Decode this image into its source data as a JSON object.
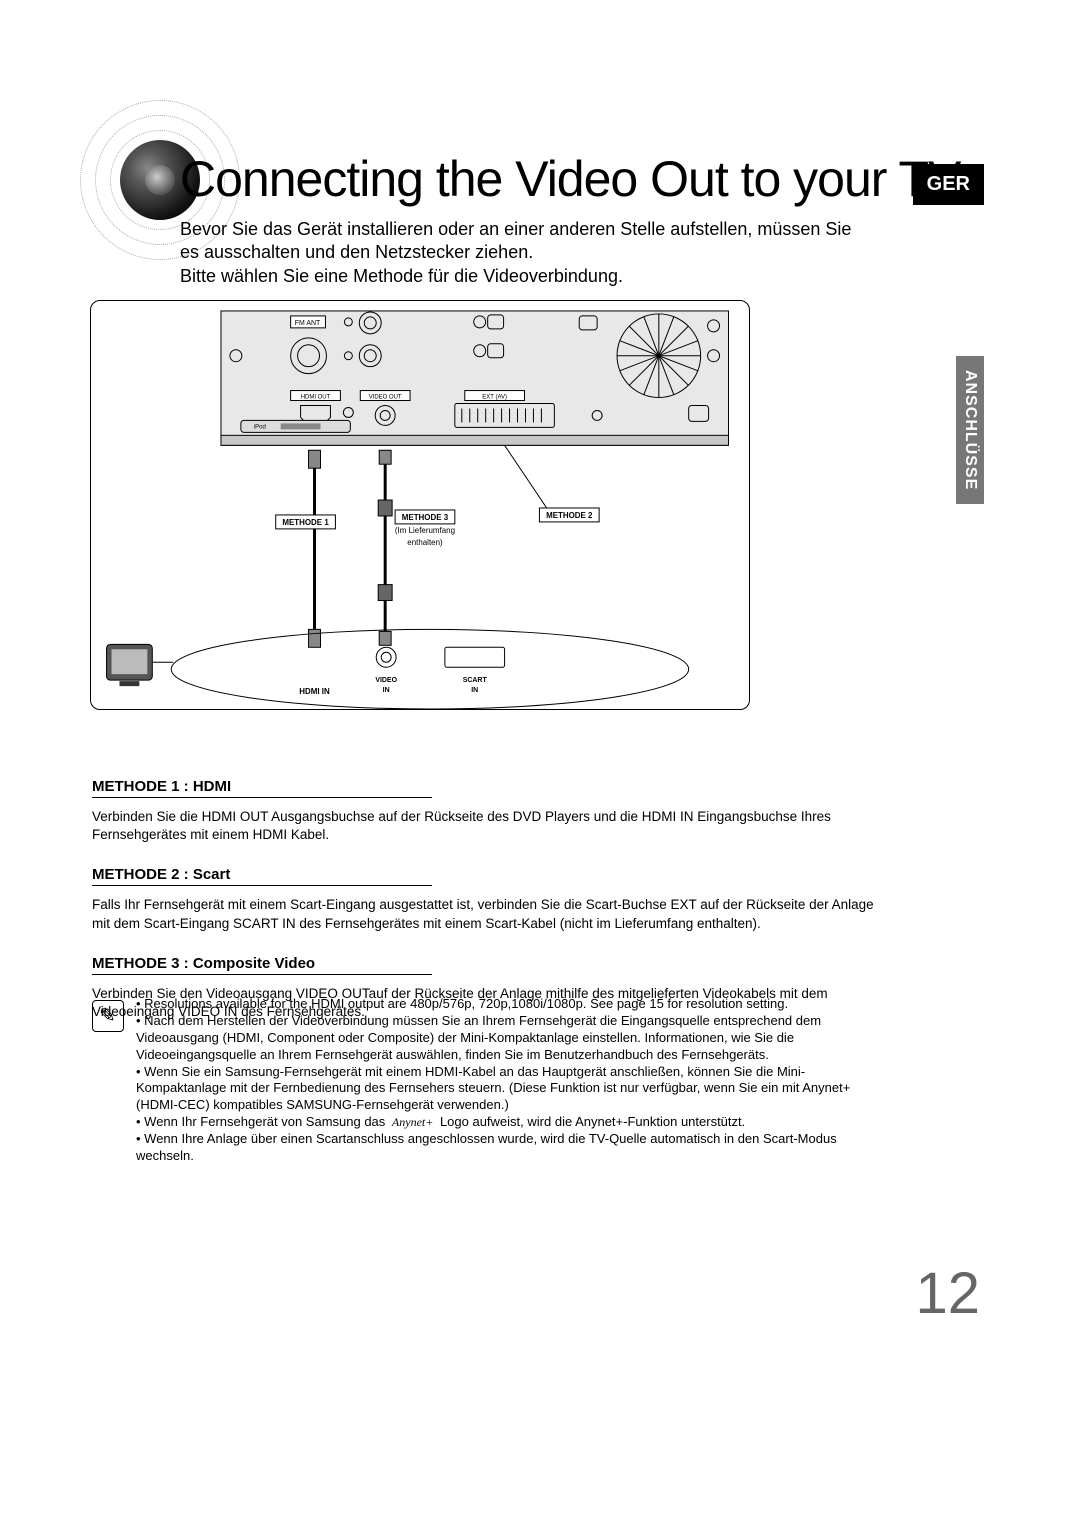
{
  "header": {
    "title": "Connecting the Video Out to your TV",
    "intro": "Bevor Sie das Gerät installieren oder an einer anderen Stelle aufstellen, müssen Sie es ausschalten und den Netzstecker ziehen.\nBitte wählen Sie eine Methode für die Videoverbindung.",
    "lang_badge": "GER",
    "side_tab": "ANSCHLÜSSE"
  },
  "diagram": {
    "ports": {
      "fmant": "FM ANT",
      "hdmi_out": "HDMI OUT",
      "video_out": "VIDEO OUT",
      "ext_av": "EXT (AV)",
      "ipod": "iPod"
    },
    "tags": {
      "methode1": "METHODE 1",
      "methode2": "METHODE 2",
      "methode3_a": "METHODE 3",
      "methode3_b": "(Im Lieferumfang",
      "methode3_c": "enthalten)"
    },
    "tv_ports": {
      "hdmi_in": "HDMI IN",
      "video_in": "VIDEO\nIN",
      "scart_in": "SCART\nIN"
    }
  },
  "methods": {
    "m1_head": "METHODE 1 : HDMI",
    "m1_text": "Verbinden Sie die HDMI OUT Ausgangsbuchse auf der Rückseite des DVD Players und die HDMI IN Eingangsbuchse Ihres Fernsehgerätes mit einem HDMI Kabel.",
    "m2_head": "METHODE 2 : Scart",
    "m2_text": "Falls Ihr Fernsehgerät mit einem Scart-Eingang ausgestattet ist, verbinden Sie die Scart-Buchse EXT auf der Rückseite der Anlage mit dem Scart-Eingang SCART IN des Fernsehgerätes mit einem Scart-Kabel (nicht im Lieferumfang enthalten).",
    "m3_head": "METHODE 3 : Composite Video",
    "m3_text": "Verbinden Sie den Videoausgang VIDEO OUTauf der Rückseite der Anlage mithilfe des mitgelieferten Videokabels mit dem Videoeingang VIDEO IN des Fernsehgerätes."
  },
  "notes": {
    "items": [
      "Resolutions available for the HDMI output are 480p/576p, 720p,1080i/1080p. See page 15 for resolution setting.",
      "Nach dem Herstellen der Videoverbindung müssen Sie an Ihrem Fernsehgerät die Eingangsquelle entsprechend dem Videoausgang (HDMI, Component oder Composite) der Mini-Kompaktanlage einstellen. Informationen, wie Sie die Videoeingangsquelle an Ihrem Fernsehgerät auswählen, finden Sie im Benutzerhandbuch des Fernsehgeräts.",
      "Wenn Sie ein Samsung-Fernsehgerät mit einem HDMI-Kabel an das Hauptgerät anschließen, können Sie die Mini-Kompaktanlage mit der Fernbedienung des Fernsehers steuern. (Diese Funktion ist nur verfügbar, wenn Sie ein mit Anynet+ (HDMI-CEC) kompatibles SAMSUNG-Fernsehgerät verwenden.)",
      "Wenn Ihr Fernsehgerät von Samsung das __ANYNET__ Logo aufweist, wird die Anynet+-Funktion unterstützt.",
      "Wenn Ihre Anlage über einen Scartanschluss angeschlossen wurde, wird die TV-Quelle automatisch in den Scart-Modus wechseln."
    ],
    "anynet_label": "Anynet+"
  },
  "page_number": "12",
  "colors": {
    "text": "#000000",
    "page_num": "#666666",
    "sidebar_bg": "#777777",
    "diagram_fill": "#e8e8e8"
  }
}
